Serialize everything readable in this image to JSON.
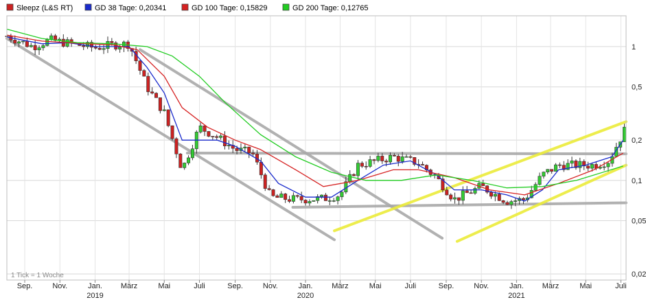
{
  "chart_data": {
    "type": "candlestick",
    "scale": "log",
    "ylim": [
      0.018,
      1.7
    ],
    "grid": true,
    "legend_position": "top-left",
    "legend": [
      {
        "label": "Sleepz (L&S RT)",
        "color": "#cc2222"
      },
      {
        "label": "GD 38 Tage: 0,20341",
        "color": "#1a2bcc"
      },
      {
        "label": "GD 100 Tage: 0,15829",
        "color": "#d62222"
      },
      {
        "label": "GD 200 Tage: 0,12765",
        "color": "#22cc22"
      }
    ],
    "y_ticks": [
      {
        "value": 1,
        "label": "1"
      },
      {
        "value": 0.5,
        "label": "0,5"
      },
      {
        "value": 0.2,
        "label": "0,2"
      },
      {
        "value": 0.1,
        "label": "0,1"
      },
      {
        "value": 0.05,
        "label": "0,05"
      },
      {
        "value": 0.02,
        "label": "0,02"
      }
    ],
    "x_start": "2018-08-01",
    "x_end": "2021-07-10",
    "x_ticks": [
      {
        "date": "2018-09-01",
        "label": "Sep."
      },
      {
        "date": "2018-11-01",
        "label": "Nov."
      },
      {
        "date": "2019-01-01",
        "label": "Jan.",
        "year": "2019"
      },
      {
        "date": "2019-03-01",
        "label": "März"
      },
      {
        "date": "2019-05-01",
        "label": "Mai"
      },
      {
        "date": "2019-07-01",
        "label": "Juli"
      },
      {
        "date": "2019-09-01",
        "label": "Sep."
      },
      {
        "date": "2019-11-01",
        "label": "Nov."
      },
      {
        "date": "2020-01-01",
        "label": "Jan.",
        "year": "2020"
      },
      {
        "date": "2020-03-01",
        "label": "März"
      },
      {
        "date": "2020-05-01",
        "label": "Mai"
      },
      {
        "date": "2020-07-01",
        "label": "Juli"
      },
      {
        "date": "2020-09-01",
        "label": "Sep."
      },
      {
        "date": "2020-11-01",
        "label": "Nov."
      },
      {
        "date": "2021-01-01",
        "label": "Jan.",
        "year": "2021"
      },
      {
        "date": "2021-03-01",
        "label": "März"
      },
      {
        "date": "2021-05-01",
        "label": "Mai"
      },
      {
        "date": "2021-07-01",
        "label": "Juli"
      }
    ],
    "note": "1 Tick = 1 Woche",
    "price_path": [
      [
        "2018-08-01",
        1.2
      ],
      [
        "2018-09-15",
        1.0
      ],
      [
        "2018-10-15",
        1.12
      ],
      [
        "2018-11-15",
        1.06
      ],
      [
        "2019-01-01",
        0.98
      ],
      [
        "2019-02-01",
        1.03
      ],
      [
        "2019-03-01",
        1.05
      ],
      [
        "2019-04-01",
        0.5
      ],
      [
        "2019-05-01",
        0.32
      ],
      [
        "2019-06-01",
        0.12
      ],
      [
        "2019-07-01",
        0.25
      ],
      [
        "2019-08-01",
        0.21
      ],
      [
        "2019-09-01",
        0.17
      ],
      [
        "2019-10-01",
        0.16
      ],
      [
        "2019-11-01",
        0.075
      ],
      [
        "2019-12-15",
        0.072
      ],
      [
        "2020-02-01",
        0.073
      ],
      [
        "2020-03-01",
        0.078
      ],
      [
        "2020-04-01",
        0.13
      ],
      [
        "2020-06-01",
        0.15
      ],
      [
        "2020-07-15",
        0.135
      ],
      [
        "2020-08-15",
        0.105
      ],
      [
        "2020-09-15",
        0.072
      ],
      [
        "2020-11-01",
        0.09
      ],
      [
        "2020-12-15",
        0.07
      ],
      [
        "2021-01-15",
        0.072
      ],
      [
        "2021-02-15",
        0.11
      ],
      [
        "2021-03-15",
        0.13
      ],
      [
        "2021-05-15",
        0.13
      ],
      [
        "2021-06-10",
        0.14
      ],
      [
        "2021-07-10",
        0.25
      ]
    ],
    "series": [
      {
        "name": "GD 38 Tage",
        "color": "#1a2bcc",
        "points": [
          [
            "2018-08-01",
            1.18
          ],
          [
            "2018-10-01",
            1.05
          ],
          [
            "2018-11-15",
            1.07
          ],
          [
            "2019-01-01",
            1.0
          ],
          [
            "2019-03-01",
            1.0
          ],
          [
            "2019-04-01",
            0.7
          ],
          [
            "2019-05-01",
            0.45
          ],
          [
            "2019-06-01",
            0.2
          ],
          [
            "2019-07-01",
            0.2
          ],
          [
            "2019-08-01",
            0.2
          ],
          [
            "2019-09-01",
            0.18
          ],
          [
            "2019-10-15",
            0.14
          ],
          [
            "2019-11-15",
            0.095
          ],
          [
            "2020-01-01",
            0.075
          ],
          [
            "2020-02-15",
            0.075
          ],
          [
            "2020-04-01",
            0.1
          ],
          [
            "2020-05-15",
            0.13
          ],
          [
            "2020-07-01",
            0.14
          ],
          [
            "2020-08-15",
            0.11
          ],
          [
            "2020-09-15",
            0.085
          ],
          [
            "2020-11-01",
            0.085
          ],
          [
            "2020-12-15",
            0.078
          ],
          [
            "2021-01-15",
            0.07
          ],
          [
            "2021-02-15",
            0.085
          ],
          [
            "2021-03-15",
            0.12
          ],
          [
            "2021-05-01",
            0.13
          ],
          [
            "2021-06-15",
            0.15
          ],
          [
            "2021-07-05",
            0.2
          ]
        ]
      },
      {
        "name": "GD 100 Tage",
        "color": "#d62222",
        "points": [
          [
            "2018-08-01",
            1.22
          ],
          [
            "2018-10-01",
            1.1
          ],
          [
            "2018-12-01",
            1.06
          ],
          [
            "2019-02-01",
            1.03
          ],
          [
            "2019-03-15",
            0.95
          ],
          [
            "2019-05-01",
            0.6
          ],
          [
            "2019-06-01",
            0.35
          ],
          [
            "2019-07-15",
            0.25
          ],
          [
            "2019-09-01",
            0.2
          ],
          [
            "2019-10-15",
            0.17
          ],
          [
            "2019-12-15",
            0.12
          ],
          [
            "2020-02-01",
            0.09
          ],
          [
            "2020-04-01",
            0.1
          ],
          [
            "2020-06-01",
            0.12
          ],
          [
            "2020-07-15",
            0.12
          ],
          [
            "2020-09-15",
            0.105
          ],
          [
            "2020-11-15",
            0.085
          ],
          [
            "2021-01-15",
            0.078
          ],
          [
            "2021-03-15",
            0.095
          ],
          [
            "2021-05-15",
            0.12
          ],
          [
            "2021-07-05",
            0.16
          ]
        ]
      },
      {
        "name": "GD 200 Tage",
        "color": "#22cc22",
        "points": [
          [
            "2018-08-01",
            1.35
          ],
          [
            "2018-10-01",
            1.15
          ],
          [
            "2018-12-01",
            1.07
          ],
          [
            "2019-02-01",
            1.05
          ],
          [
            "2019-04-01",
            1.0
          ],
          [
            "2019-05-15",
            0.85
          ],
          [
            "2019-07-01",
            0.6
          ],
          [
            "2019-08-15",
            0.38
          ],
          [
            "2019-10-15",
            0.22
          ],
          [
            "2019-12-15",
            0.15
          ],
          [
            "2020-02-15",
            0.115
          ],
          [
            "2020-04-15",
            0.1
          ],
          [
            "2020-06-15",
            0.1
          ],
          [
            "2020-08-15",
            0.11
          ],
          [
            "2020-10-15",
            0.1
          ],
          [
            "2020-12-15",
            0.088
          ],
          [
            "2021-02-15",
            0.09
          ],
          [
            "2021-04-15",
            0.1
          ],
          [
            "2021-07-05",
            0.128
          ]
        ]
      }
    ],
    "trendlines": [
      {
        "color": "#a9a9a9",
        "from": [
          "2018-08-01",
          1.15
        ],
        "to": [
          "2020-02-20",
          0.036
        ]
      },
      {
        "color": "#a9a9a9",
        "from": [
          "2019-03-20",
          0.95
        ],
        "to": [
          "2020-08-25",
          0.037
        ]
      },
      {
        "color": "#a9a9a9",
        "from": [
          "2019-06-10",
          0.16
        ],
        "to": [
          "2021-07-10",
          0.158
        ]
      },
      {
        "color": "#a9a9a9",
        "from": [
          "2019-12-10",
          0.063
        ],
        "to": [
          "2021-07-10",
          0.068
        ]
      },
      {
        "color": "#ecec3a",
        "from": [
          "2020-02-20",
          0.042
        ],
        "to": [
          "2021-07-10",
          0.275
        ]
      },
      {
        "color": "#ecec3a",
        "from": [
          "2020-09-20",
          0.035
        ],
        "to": [
          "2021-07-10",
          0.13
        ]
      }
    ]
  }
}
